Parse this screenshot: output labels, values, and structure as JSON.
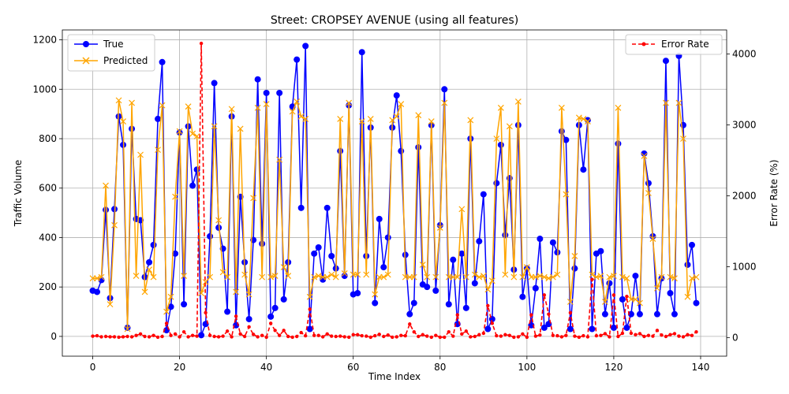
{
  "chart_data": {
    "type": "line",
    "title": "Street: CROPSEY AVENUE (using all features)",
    "xlabel": "Time Index",
    "ylabel": "Traffic Volume",
    "ylabel_right": "Error Rate (%)",
    "xlim": [
      -7,
      146
    ],
    "ylim": [
      -80,
      1240
    ],
    "ylim_right": [
      -263,
      4340
    ],
    "xticks": [
      0,
      20,
      40,
      60,
      80,
      100,
      120,
      140
    ],
    "yticks": [
      0,
      200,
      400,
      600,
      800,
      1000,
      1200
    ],
    "yticks_right": [
      0,
      1000,
      2000,
      3000,
      4000
    ],
    "grid": true,
    "legend_left": {
      "placement": "upper-left",
      "entries": [
        "True",
        "Predicted"
      ]
    },
    "legend_right": {
      "placement": "upper-right",
      "entries": [
        "Error Rate"
      ]
    },
    "colors": {
      "true": "#0000ff",
      "predicted": "#ffa500",
      "error": "#ff0000",
      "grid": "#b0b0b0"
    },
    "series": [
      {
        "name": "True",
        "axis": "left",
        "values": [
          185,
          180,
          228,
          512,
          155,
          515,
          890,
          775,
          35,
          840,
          475,
          470,
          240,
          300,
          370,
          880,
          1110,
          25,
          120,
          335,
          825,
          130,
          850,
          610,
          675,
          5,
          50,
          405,
          1025,
          440,
          355,
          100,
          890,
          45,
          565,
          300,
          70,
          390,
          1040,
          375,
          985,
          80,
          115,
          985,
          150,
          300,
          930,
          1120,
          520,
          1175,
          30,
          335,
          360,
          230,
          520,
          325,
          275,
          750,
          245,
          935,
          170,
          175,
          1150,
          325,
          845,
          135,
          475,
          280,
          400,
          845,
          975,
          750,
          330,
          90,
          135,
          765,
          210,
          200,
          855,
          185,
          450,
          1000,
          130,
          310,
          50,
          335,
          115,
          800,
          215,
          385,
          575,
          30,
          70,
          620,
          775,
          410,
          640,
          270,
          855,
          160,
          275,
          45,
          195,
          395,
          35,
          50,
          380,
          340,
          830,
          795,
          30,
          275,
          855,
          675,
          875,
          30,
          335,
          345,
          90,
          215,
          35,
          780,
          150,
          35,
          90,
          245,
          90,
          740,
          620,
          405,
          90,
          235,
          1115,
          175,
          90,
          1135,
          855,
          290,
          370,
          135
        ]
      },
      {
        "name": "Predicted",
        "axis": "left",
        "values": [
          235,
          235,
          240,
          610,
          130,
          450,
          955,
          870,
          30,
          945,
          245,
          735,
          180,
          270,
          240,
          755,
          935,
          100,
          160,
          565,
          830,
          245,
          930,
          820,
          810,
          175,
          220,
          240,
          850,
          470,
          260,
          240,
          920,
          180,
          840,
          250,
          170,
          560,
          925,
          240,
          940,
          240,
          245,
          715,
          280,
          245,
          910,
          950,
          890,
          880,
          160,
          240,
          245,
          240,
          240,
          250,
          240,
          880,
          255,
          945,
          250,
          250,
          870,
          250,
          880,
          170,
          240,
          240,
          250,
          875,
          890,
          940,
          240,
          240,
          240,
          895,
          290,
          240,
          870,
          240,
          440,
          945,
          240,
          240,
          240,
          515,
          240,
          875,
          250,
          240,
          245,
          190,
          225,
          800,
          925,
          250,
          850,
          240,
          950,
          240,
          280,
          240,
          240,
          245,
          240,
          235,
          240,
          250,
          925,
          575,
          140,
          325,
          885,
          880,
          870,
          250,
          240,
          245,
          140,
          240,
          245,
          925,
          240,
          235,
          150,
          150,
          135,
          730,
          580,
          395,
          195,
          240,
          945,
          240,
          235,
          945,
          800,
          160,
          235,
          240
        ]
      },
      {
        "name": "Error Rate",
        "axis": "right",
        "values": [
          20,
          25,
          10,
          15,
          10,
          10,
          5,
          10,
          15,
          10,
          30,
          50,
          15,
          10,
          30,
          5,
          15,
          200,
          30,
          50,
          10,
          80,
          10,
          30,
          20,
          4150,
          350,
          30,
          15,
          10,
          20,
          90,
          10,
          300,
          50,
          15,
          150,
          45,
          10,
          30,
          5,
          200,
          100,
          30,
          100,
          15,
          5,
          15,
          70,
          25,
          400,
          30,
          30,
          10,
          50,
          20,
          15,
          20,
          10,
          5,
          40,
          40,
          25,
          20,
          5,
          25,
          45,
          15,
          35,
          5,
          10,
          30,
          25,
          190,
          80,
          15,
          40,
          20,
          5,
          30,
          5,
          5,
          80,
          20,
          320,
          50,
          90,
          10,
          15,
          40,
          60,
          450,
          200,
          25,
          20,
          40,
          30,
          5,
          10,
          50,
          5,
          320,
          20,
          35,
          600,
          330,
          30,
          25,
          10,
          30,
          350,
          20,
          5,
          25,
          10,
          820,
          25,
          30,
          55,
          10,
          600,
          15,
          60,
          580,
          60,
          40,
          55,
          15,
          30,
          20,
          100,
          35,
          15,
          40,
          55,
          20,
          10,
          40,
          30,
          80
        ]
      }
    ]
  }
}
